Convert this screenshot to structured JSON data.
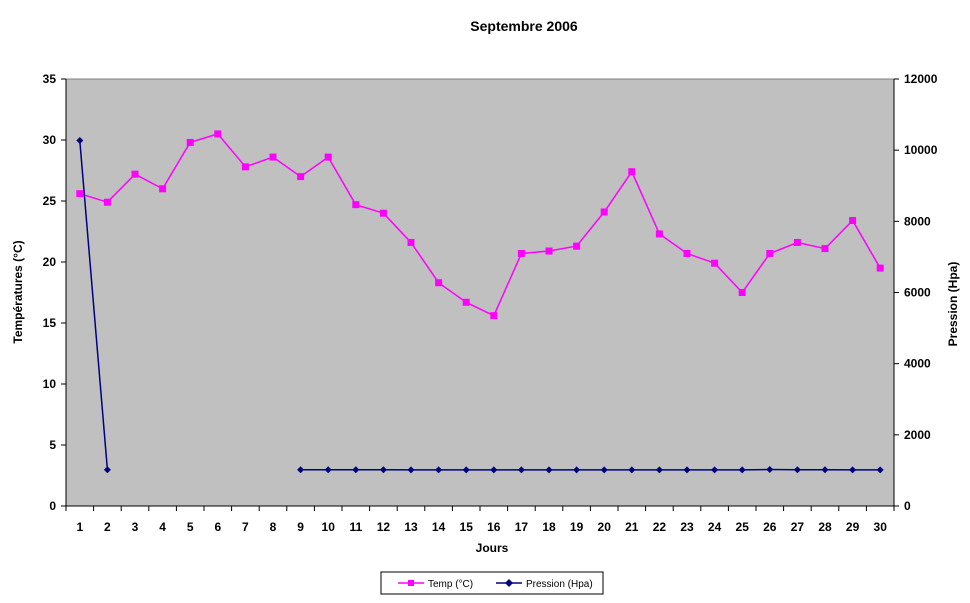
{
  "chart_data": {
    "type": "line",
    "title": "Septembre 2006",
    "xlabel": "Jours",
    "ylabel_left": "Températures (°C)",
    "ylabel_right": "Pression (Hpa)",
    "x": [
      1,
      2,
      3,
      4,
      5,
      6,
      7,
      8,
      9,
      10,
      11,
      12,
      13,
      14,
      15,
      16,
      17,
      18,
      19,
      20,
      21,
      22,
      23,
      24,
      25,
      26,
      27,
      28,
      29,
      30
    ],
    "ylim_left": [
      0,
      35
    ],
    "yticks_left": [
      0,
      5,
      10,
      15,
      20,
      25,
      30,
      35
    ],
    "ylim_right": [
      0,
      12000
    ],
    "yticks_right": [
      0,
      2000,
      4000,
      6000,
      8000,
      10000,
      12000
    ],
    "grid": false,
    "plot_background": "#c0c0c0",
    "legend_position": "bottom-center",
    "series": [
      {
        "name": "Temp (°C)",
        "axis": "left",
        "color": "#ff00ff",
        "marker": "square",
        "values": [
          25.6,
          24.9,
          27.2,
          26.0,
          29.8,
          30.5,
          27.8,
          28.6,
          27.0,
          28.6,
          24.7,
          24.0,
          21.6,
          18.3,
          16.7,
          15.6,
          20.7,
          20.9,
          21.3,
          24.1,
          27.4,
          22.3,
          20.7,
          19.9,
          17.5,
          20.7,
          21.6,
          21.1,
          23.4,
          19.5
        ]
      },
      {
        "name": "Pression (Hpa)",
        "axis": "right",
        "color": "#000080",
        "marker": "diamond",
        "values": [
          10270,
          1020,
          null,
          null,
          null,
          null,
          null,
          null,
          1020,
          1020,
          1020,
          1020,
          1015,
          1015,
          1015,
          1015,
          1015,
          1015,
          1015,
          1015,
          1015,
          1015,
          1015,
          1015,
          1015,
          1025,
          1020,
          1020,
          1015,
          1015
        ]
      }
    ]
  }
}
